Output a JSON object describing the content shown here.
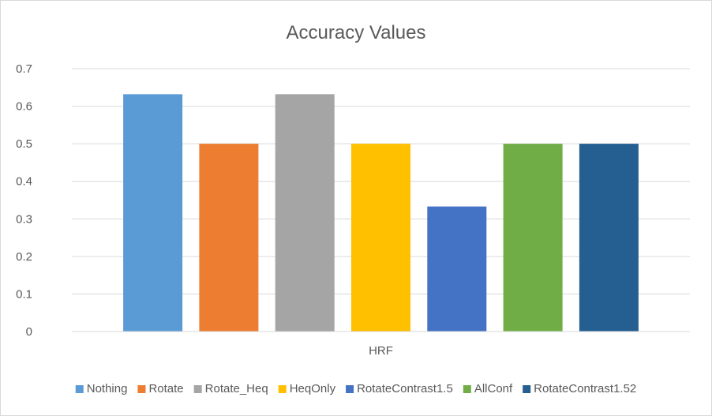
{
  "chart_data": {
    "type": "bar",
    "title": "Accuracy Values",
    "xlabel": "",
    "ylabel": "",
    "categories": [
      "HRF"
    ],
    "ylim": [
      0,
      0.7
    ],
    "yticks": [
      0,
      0.1,
      0.2,
      0.3,
      0.4,
      0.5,
      0.6,
      0.7
    ],
    "ytick_labels": [
      "0",
      "0.1",
      "0.2",
      "0.3",
      "0.4",
      "0.5",
      "0.6",
      "0.7"
    ],
    "grid": true,
    "legend_position": "bottom",
    "series": [
      {
        "name": "Nothing",
        "values": [
          0.632
        ],
        "color": "#5B9BD5"
      },
      {
        "name": "Rotate",
        "values": [
          0.5
        ],
        "color": "#ED7D31"
      },
      {
        "name": "Rotate_Heq",
        "values": [
          0.632
        ],
        "color": "#A5A5A5"
      },
      {
        "name": "HeqOnly",
        "values": [
          0.5
        ],
        "color": "#FFC000"
      },
      {
        "name": "RotateContrast1.5",
        "values": [
          0.333
        ],
        "color": "#4472C4"
      },
      {
        "name": "AllConf",
        "values": [
          0.5
        ],
        "color": "#70AD47"
      },
      {
        "name": "RotateContrast1.52",
        "values": [
          0.5
        ],
        "color": "#255E91"
      }
    ]
  }
}
